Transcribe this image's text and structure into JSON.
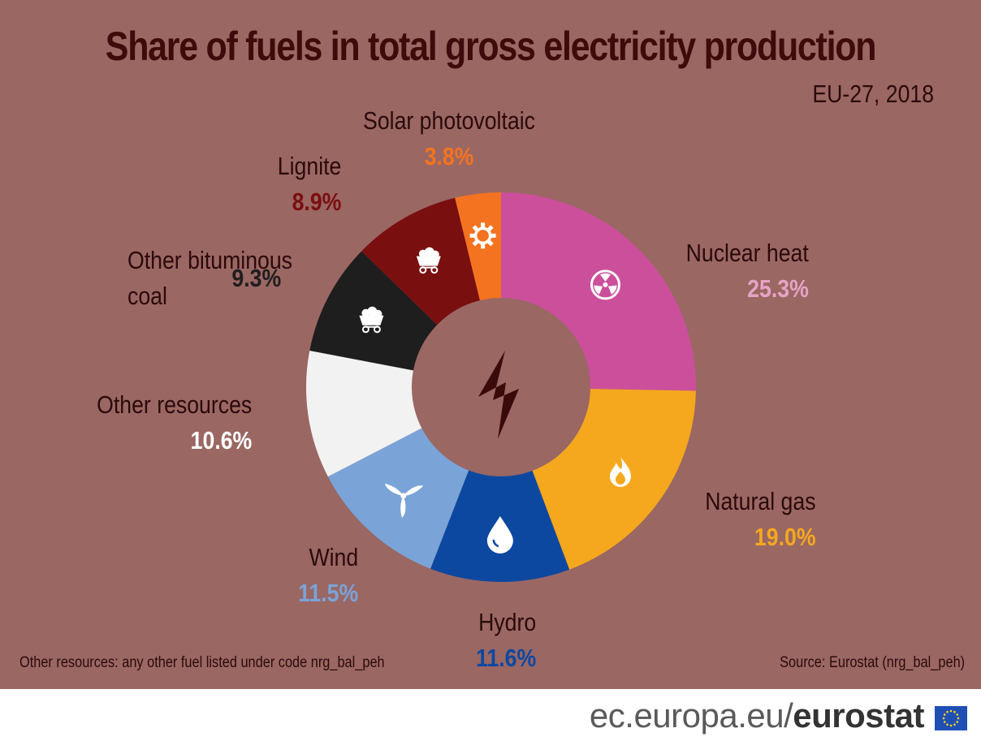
{
  "chart_data": {
    "type": "pie",
    "title": "Share of fuels in total gross electricity production",
    "subtitle": "EU-27, 2018",
    "value_suffix": "%",
    "slices": [
      {
        "label": "Nuclear heat",
        "value": 25.3,
        "value_label": "25.3%",
        "color": "#cc4f9c",
        "label_color": "#e7a3c5",
        "icon": "radiation-icon"
      },
      {
        "label": "Natural gas",
        "value": 19.0,
        "value_label": "19.0%",
        "color": "#f5a81d",
        "label_color": "#f5a81d",
        "icon": "flame-icon"
      },
      {
        "label": "Hydro",
        "value": 11.6,
        "value_label": "11.6%",
        "color": "#0d48a0",
        "label_color": "#0d48a0",
        "icon": "water-drop-icon"
      },
      {
        "label": "Wind",
        "value": 11.5,
        "value_label": "11.5%",
        "color": "#7aa3d8",
        "label_color": "#7aa3d8",
        "icon": "wind-turbine-icon"
      },
      {
        "label": "Other resources",
        "value": 10.6,
        "value_label": "10.6%",
        "color": "#f2f2f2",
        "label_color": "#ffffff",
        "icon": ""
      },
      {
        "label": "Other bituminous coal",
        "label_lines": [
          "Other bituminous",
          "coal"
        ],
        "value": 9.3,
        "value_label": "9.3%",
        "color": "#1e1e1e",
        "label_color": "#1e1e1e",
        "icon": "coal-cart-icon"
      },
      {
        "label": "Lignite",
        "value": 8.9,
        "value_label": "8.9%",
        "color": "#7a0f0f",
        "label_color": "#7a0f0f",
        "icon": "coal-cart-icon"
      },
      {
        "label": "Solar photovoltaic",
        "value": 3.8,
        "value_label": "3.8%",
        "color": "#f47320",
        "label_color": "#f47320",
        "icon": "sun-icon"
      }
    ],
    "center_icon": "electricity-bolt-icon",
    "footnote": "Other resources: any other fuel listed under code nrg_bal_peh",
    "source": "Source: Eurostat (nrg_bal_peh)"
  },
  "footer": {
    "brand_site": "ec.europa.eu/",
    "brand_name": "eurostat",
    "flag_icon": "eu-flag-icon"
  },
  "colors": {
    "panel_bg": "#9a6763",
    "title": "#3e0b0b"
  }
}
